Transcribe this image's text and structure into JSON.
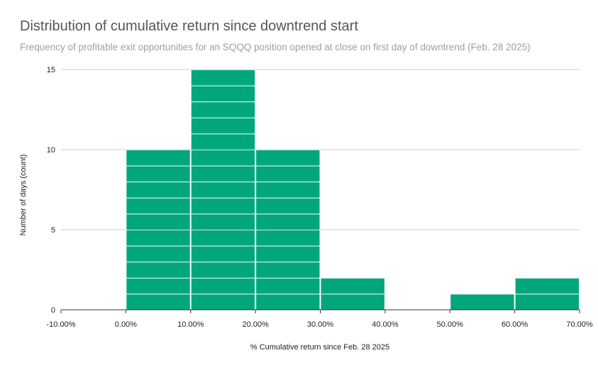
{
  "chart_data": {
    "type": "bar",
    "title": "Distribution of cumulative return since downtrend start",
    "subtitle": "Frequency of profitable exit opportunities for an SQQQ position opened at close on first day of downtrend (Feb. 28 2025)",
    "xlabel": "% Cumulative return since Feb. 28 2025",
    "ylabel": "Number of days (count)",
    "x_ticks": [
      "-10.00%",
      "0.00%",
      "10.00%",
      "20.00%",
      "30.00%",
      "40.00%",
      "50.00%",
      "60.00%",
      "70.00%"
    ],
    "y_ticks": [
      "0",
      "5",
      "10",
      "15"
    ],
    "xlim": [
      -10,
      70
    ],
    "ylim": [
      0,
      15
    ],
    "bins": [
      {
        "from": 0,
        "to": 10,
        "count": 10
      },
      {
        "from": 10,
        "to": 20,
        "count": 15
      },
      {
        "from": 20,
        "to": 30,
        "count": 10
      },
      {
        "from": 30,
        "to": 40,
        "count": 2
      },
      {
        "from": 50,
        "to": 60,
        "count": 1
      },
      {
        "from": 60,
        "to": 70,
        "count": 2
      }
    ],
    "bar_color": "#00a67c",
    "grid": true,
    "legend": "none"
  }
}
